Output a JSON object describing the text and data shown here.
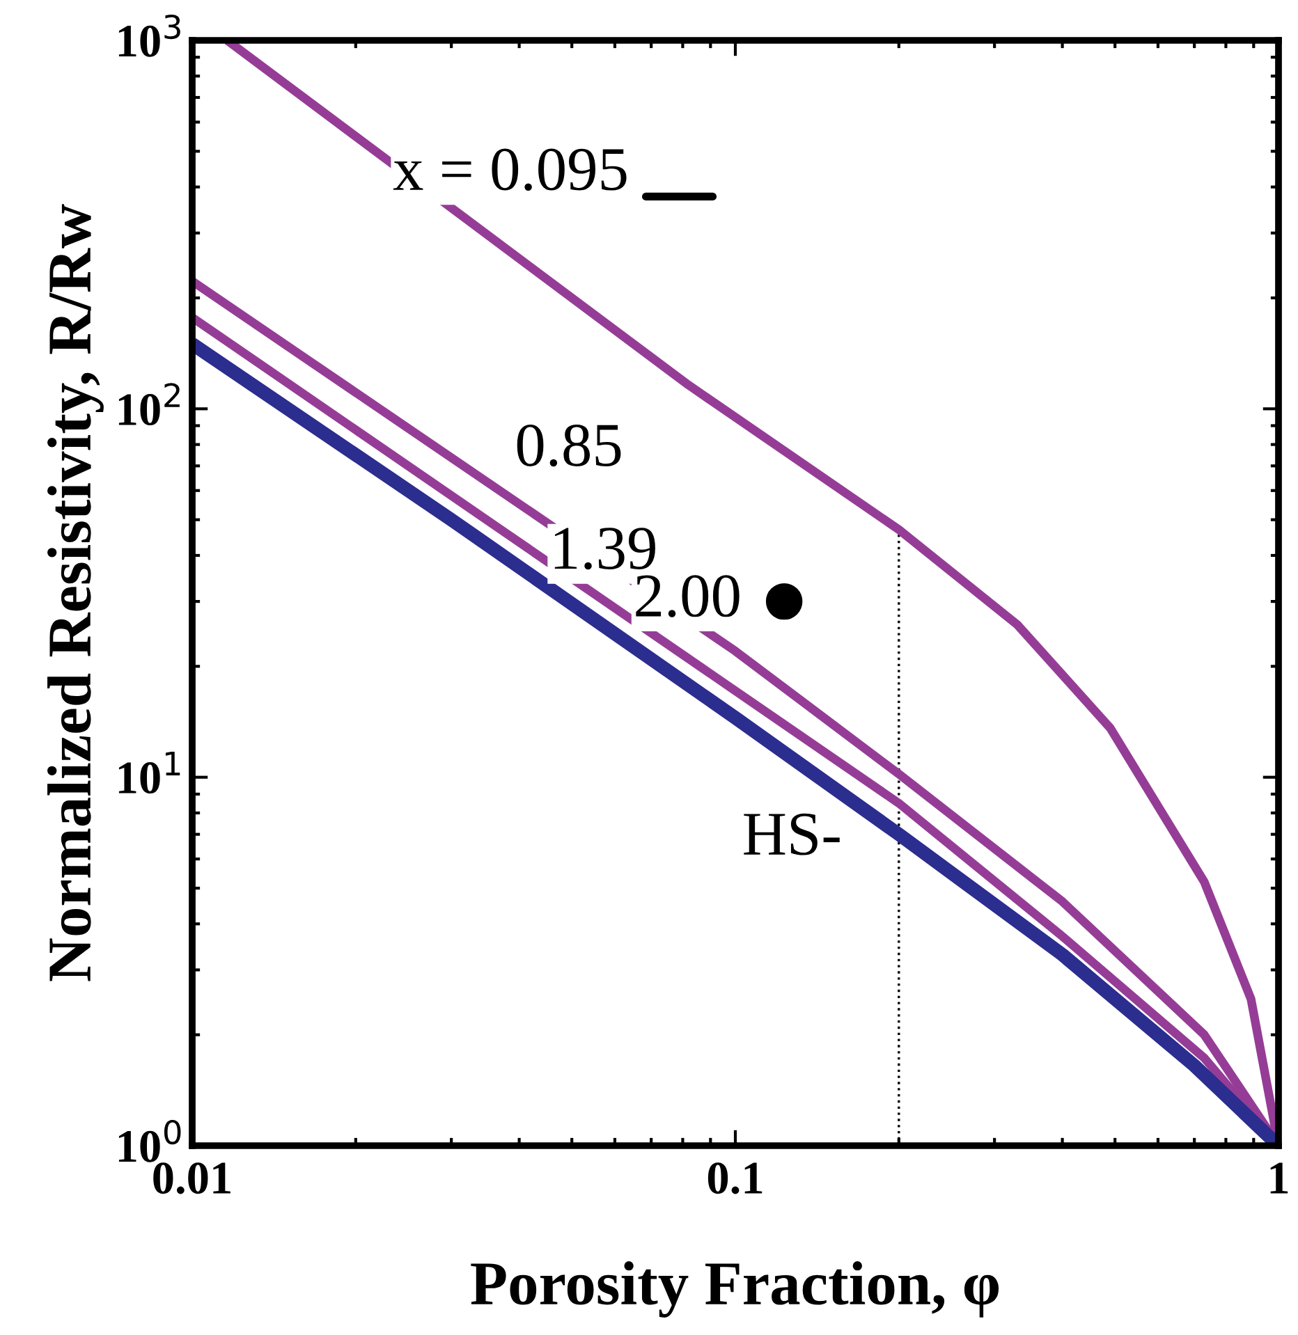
{
  "chart_data": {
    "type": "line",
    "xlabel": "Porosity Fraction, φ",
    "ylabel": "Normalized Resistivity, R/Rw",
    "log": "xy",
    "xlim": [
      0.01,
      1
    ],
    "ylim": [
      1,
      1000
    ],
    "xticks": [
      0.01,
      0.1,
      1
    ],
    "yticks": [
      {
        "value": 1,
        "label": "10$^{0}$"
      },
      {
        "value": 10,
        "label": "10$^{1}$"
      },
      {
        "value": 100,
        "label": "10$^{2}$"
      },
      {
        "value": 1000,
        "label": "10$^{3}$"
      }
    ],
    "grid": false,
    "legend": false,
    "series": [
      {
        "name": "x = 0.095",
        "color": "#953d96",
        "x": [
          0.0116,
          0.082,
          0.2,
          0.33,
          0.49,
          0.73,
          0.89,
          1
        ],
        "values": [
          1000,
          116,
          47,
          26,
          13.6,
          5.2,
          2.5,
          1
        ]
      },
      {
        "name": "0.85",
        "color": "#953d96",
        "x": [
          0.01,
          0.1,
          0.2,
          0.4,
          0.73,
          1
        ],
        "values": [
          222,
          22,
          10.2,
          4.6,
          2.0,
          1
        ]
      },
      {
        "name": "1.39",
        "color": "#953d96",
        "x": [
          0.01,
          0.2,
          0.4,
          0.73,
          1
        ],
        "values": [
          177,
          8.5,
          3.7,
          1.73,
          1
        ]
      },
      {
        "name": "HS-",
        "color": "#2b2d8f",
        "x": [
          0.01,
          0.03,
          0.1,
          0.2,
          0.4,
          0.7,
          1
        ],
        "values": [
          150,
          50,
          14.5,
          7,
          3.3,
          1.65,
          1
        ]
      },
      {
        "type": "line",
        "line_style": "dotted",
        "color": "#000000",
        "x": [
          0.2,
          0.2
        ],
        "values": [
          1,
          47
        ]
      },
      {
        "name": "2.00",
        "type": "scatter",
        "marker": "circle",
        "color": "#000000",
        "x": [
          0.123
        ],
        "values": [
          30
        ]
      }
    ]
  }
}
